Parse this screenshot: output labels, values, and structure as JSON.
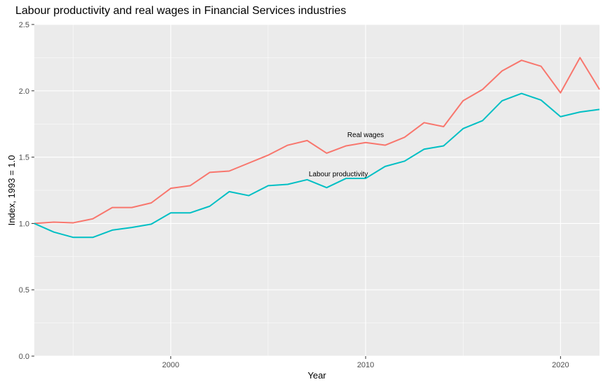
{
  "chart_data": {
    "type": "line",
    "title": "Labour productivity and real wages in Financial Services industries",
    "xlabel": "Year",
    "ylabel": "Index, 1993 = 1.0",
    "xlim": [
      1993,
      2022
    ],
    "ylim": [
      0,
      2.5
    ],
    "x_ticks": [
      2000,
      2010,
      2020
    ],
    "y_ticks": [
      0.0,
      0.5,
      1.0,
      1.5,
      2.0,
      2.5
    ],
    "y_tick_labels": [
      "0.0",
      "0.5",
      "1.0",
      "1.5",
      "2.0",
      "2.5"
    ],
    "grid": true,
    "legend": "none",
    "x": [
      1993,
      1994,
      1995,
      1996,
      1997,
      1998,
      1999,
      2000,
      2001,
      2002,
      2003,
      2004,
      2005,
      2006,
      2007,
      2008,
      2009,
      2010,
      2011,
      2012,
      2013,
      2014,
      2015,
      2016,
      2017,
      2018,
      2019,
      2020,
      2021,
      2022
    ],
    "series": [
      {
        "name": "Real wages",
        "color": "#F8766D",
        "values": [
          1.0,
          1.01,
          1.005,
          1.035,
          1.12,
          1.12,
          1.155,
          1.265,
          1.285,
          1.385,
          1.395,
          1.455,
          1.515,
          1.59,
          1.625,
          1.53,
          1.585,
          1.61,
          1.59,
          1.65,
          1.76,
          1.73,
          1.925,
          2.01,
          2.15,
          2.23,
          2.185,
          1.985,
          2.25,
          2.01
        ]
      },
      {
        "name": "Labour productivity",
        "color": "#00BFC4",
        "values": [
          1.0,
          0.935,
          0.895,
          0.895,
          0.95,
          0.97,
          0.995,
          1.08,
          1.08,
          1.13,
          1.24,
          1.21,
          1.285,
          1.295,
          1.33,
          1.27,
          1.34,
          1.34,
          1.43,
          1.47,
          1.56,
          1.585,
          1.715,
          1.775,
          1.925,
          1.98,
          1.93,
          1.805,
          1.84,
          1.86
        ]
      }
    ],
    "annotations": [
      {
        "text": "Real wages",
        "x": 2010.0,
        "y": 1.65
      },
      {
        "text": "Labour productivity",
        "x": 2008.6,
        "y": 1.355
      }
    ]
  }
}
